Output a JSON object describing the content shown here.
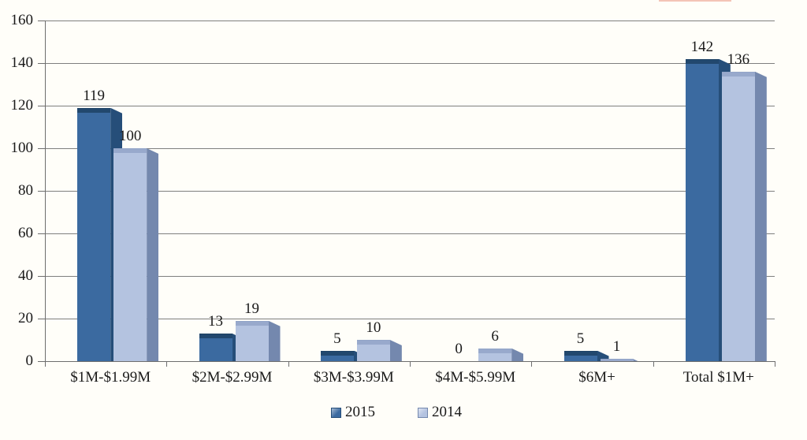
{
  "chart_data": {
    "type": "bar",
    "title": "",
    "categories": [
      "$1M-$1.99M",
      "$2M-$2.99M",
      "$3M-$3.99M",
      "$4M-$5.99M",
      "$6M+",
      "Total $1M+"
    ],
    "series": [
      {
        "name": "2015",
        "values": [
          119,
          13,
          5,
          0,
          5,
          142
        ],
        "color": "#3b6aa0",
        "side_color": "#264e79",
        "top_color": "#1e4265"
      },
      {
        "name": "2014",
        "values": [
          100,
          19,
          10,
          6,
          1,
          136
        ],
        "color": "#b4c3e0",
        "side_color": "#7488ae",
        "top_color": "#93a5c8"
      }
    ],
    "ylim": [
      0,
      160
    ],
    "yticks": [
      0,
      20,
      40,
      60,
      80,
      100,
      120,
      140,
      160
    ],
    "xlabel": "",
    "ylabel": "",
    "grid": "horizontal",
    "legend_position": "bottom",
    "data_labels": "outside-end",
    "style": "3d-beveled-bars"
  },
  "colors": {
    "background": "#fffef9",
    "gridline": "#7f7f7f",
    "axis": "#6e6e6e",
    "text": "#1a1a1a",
    "top_edge_artifact": "#e05a3c"
  }
}
